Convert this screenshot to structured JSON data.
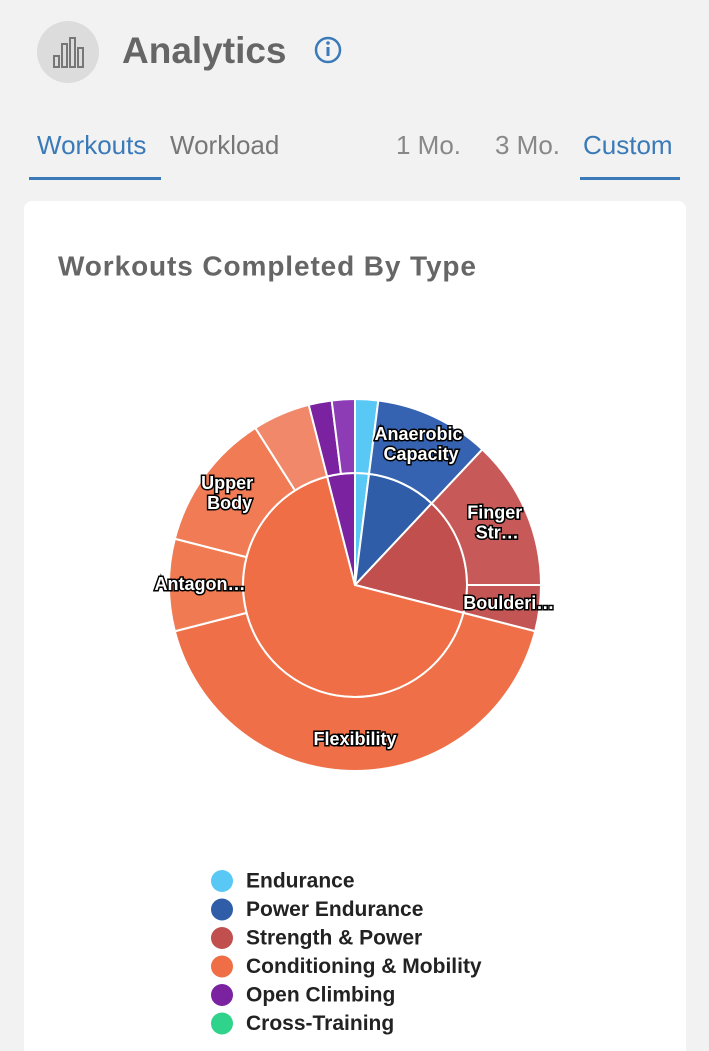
{
  "header": {
    "title": "Analytics"
  },
  "tabs": [
    "Workouts",
    "Workload"
  ],
  "ranges": [
    "1 Mo.",
    "3 Mo.",
    "Custom"
  ],
  "chart_data": {
    "type": "sunburst",
    "title": "Workouts Completed By Type",
    "categories": [
      {
        "name": "Endurance",
        "color": "#5ac8f5",
        "value": 2,
        "children": [
          {
            "label": null,
            "value": 2,
            "color": "#5ac8f5"
          }
        ]
      },
      {
        "name": "Power Endurance",
        "color": "#2f5da8",
        "value": 10,
        "children": [
          {
            "label": "Anaerobic Capacity",
            "value": 10,
            "color": "#3563b1"
          }
        ]
      },
      {
        "name": "Strength & Power",
        "color": "#c04f4d",
        "value": 17,
        "children": [
          {
            "label": "Finger Str…",
            "value": 13,
            "color": "#c75a59"
          },
          {
            "label": "Boulderi…",
            "value": 4,
            "color": "#c35655"
          }
        ]
      },
      {
        "name": "Conditioning & Mobility",
        "color": "#ef6e46",
        "value": 67,
        "children": [
          {
            "label": "Flexibility",
            "value": 42,
            "color": "#ef7048"
          },
          {
            "label": "Antagon…",
            "value": 8,
            "color": "#f07a52"
          },
          {
            "label": "Upper Body",
            "value": 12,
            "color": "#f07b54"
          },
          {
            "label": null,
            "value": 5,
            "color": "#f2886a"
          }
        ]
      },
      {
        "name": "Open Climbing",
        "color": "#7a22a0",
        "value": 4,
        "children": [
          {
            "label": null,
            "value": 2,
            "color": "#7a22a0"
          },
          {
            "label": null,
            "value": 2,
            "color": "#8d3cb6"
          }
        ]
      },
      {
        "name": "Cross-Training",
        "color": "#2fd38c",
        "value": 0,
        "children": []
      }
    ]
  }
}
